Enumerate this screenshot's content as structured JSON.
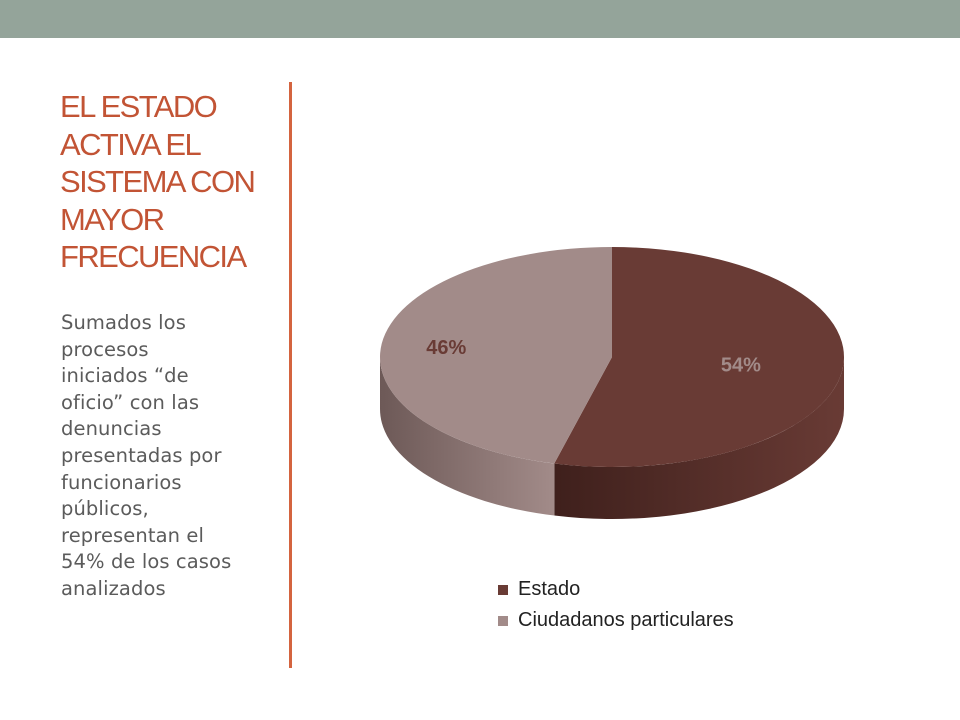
{
  "slide": {
    "title_lines": [
      "EL ESTADO",
      "ACTIVA EL",
      "SISTEMA CON",
      "MAYOR",
      "FRECUENCIA"
    ],
    "body_lines": [
      "Sumados los",
      "procesos",
      "iniciados “de",
      "oficio” con las",
      "denuncias",
      "presentadas por",
      "funcionarios",
      "públicos,",
      "representan el",
      "54% de los casos",
      "analizados"
    ]
  },
  "colors": {
    "top_bar": "#94a49a",
    "title": "#c25435",
    "divider": "#d4643f",
    "body_text": "#5b5b5b"
  },
  "chart_data": {
    "type": "pie",
    "style": "3d",
    "categories": [
      "Estado",
      "Ciudadanos particulares"
    ],
    "values": [
      54,
      46
    ],
    "data_labels": [
      "54%",
      "46%"
    ],
    "colors": [
      "#693b35",
      "#a28b89"
    ],
    "side_colors": [
      "#3f201c",
      "#6d5957"
    ],
    "legend_position": "bottom"
  }
}
